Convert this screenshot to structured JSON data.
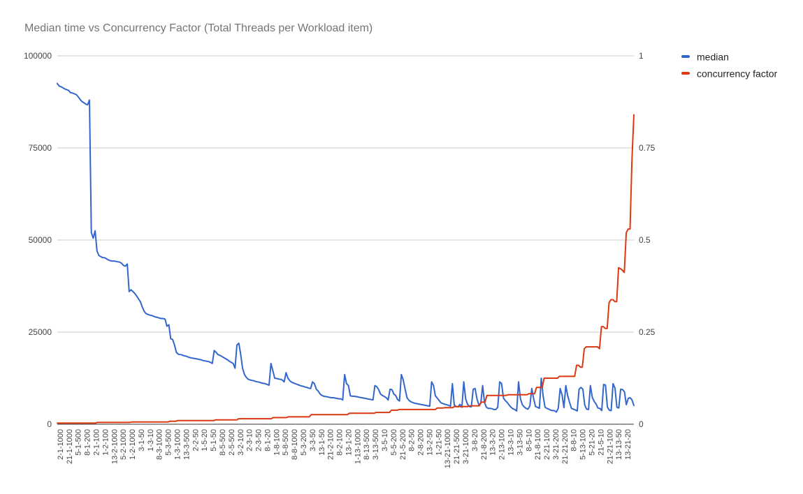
{
  "chart_data": {
    "type": "line",
    "title": "Median time vs Concurrency Factor (Total Threads per Workload item)",
    "xlabel": "",
    "ylabel": "",
    "ylim": [
      0,
      100000
    ],
    "y_ticks": [
      "0",
      "25000",
      "50000",
      "75000",
      "100000"
    ],
    "y2lim": [
      0,
      1
    ],
    "y2_ticks": [
      "0",
      "0.25",
      "0.5",
      "0.75",
      "1"
    ],
    "grid": true,
    "legend_position": "right",
    "x_tick_labels": [
      "2-1-1000",
      "21-1-1000",
      "5-1-500",
      "8-1-200",
      "2-1-100",
      "1-2-100",
      "13-2-1000",
      "5-2-1000",
      "1-2-1000",
      "3-1-50",
      "1-3-10",
      "8-3-1000",
      "5-3-500",
      "1-3-1000",
      "13-3-500",
      "2-2-50",
      "1-5-20",
      "5-1-50",
      "8-5-500",
      "2-5-500",
      "3-2-100",
      "2-3-10",
      "2-3-50",
      "8-1-20",
      "1-8-100",
      "5-8-500",
      "8-8-1000",
      "5-3-200",
      "3-3-50",
      "13-1-50",
      "21-2-100",
      "8-2-100",
      "13-1-20",
      "1-13-1000",
      "8-13-500",
      "3-13-500",
      "3-5-10",
      "5-5-200",
      "21-5-200",
      "8-2-50",
      "2-8-200",
      "13-2-50",
      "1-21-50",
      "13-21-1000",
      "21-21-500",
      "3-21-1000",
      "3-8-20",
      "21-8-200",
      "13-3-20",
      "2-13-100",
      "13-3-10",
      "3-13-50",
      "8-5-10",
      "21-8-100",
      "2-21-100",
      "3-21-200",
      "21-21-200",
      "8-8-10",
      "5-13-100",
      "5-21-20",
      "21-5-10",
      "21-21-100",
      "13-13-50",
      "13-21-20"
    ],
    "series": [
      {
        "name": "median",
        "color": "#3366cc",
        "axis": "left",
        "values": [
          92500,
          91800,
          91600,
          91300,
          91000,
          90800,
          90600,
          90000,
          89900,
          89700,
          89500,
          88900,
          88200,
          87600,
          87300,
          86900,
          86700,
          88000,
          52000,
          50500,
          52500,
          47000,
          45800,
          45500,
          45200,
          45200,
          44900,
          44600,
          44400,
          44300,
          44300,
          44200,
          44100,
          44000,
          43700,
          43100,
          42900,
          43500,
          36000,
          36500,
          36000,
          35500,
          34800,
          34000,
          33200,
          31800,
          30600,
          30000,
          29800,
          29600,
          29500,
          29300,
          29100,
          29000,
          28800,
          28700,
          28700,
          28500,
          26600,
          27000,
          23200,
          23000,
          21500,
          19500,
          19000,
          18900,
          18800,
          18600,
          18500,
          18300,
          18100,
          18000,
          17900,
          17800,
          17700,
          17600,
          17500,
          17300,
          17200,
          17100,
          17000,
          16800,
          16500,
          20000,
          19500,
          18900,
          18700,
          18400,
          18100,
          17800,
          17500,
          17100,
          16800,
          16500,
          15200,
          21500,
          22000,
          19000,
          15200,
          13500,
          12700,
          12200,
          12000,
          11900,
          11800,
          11600,
          11500,
          11400,
          11200,
          11100,
          11000,
          10800,
          10600,
          16500,
          14500,
          12500,
          12400,
          12300,
          12200,
          12000,
          11500,
          14000,
          12500,
          11800,
          11400,
          11200,
          11000,
          10800,
          10600,
          10400,
          10300,
          10100,
          10000,
          9800,
          9700,
          11500,
          11000,
          9500,
          9000,
          8200,
          7800,
          7600,
          7500,
          7400,
          7300,
          7200,
          7200,
          7100,
          7000,
          6900,
          6900,
          6600,
          13500,
          11000,
          10500,
          7700,
          7600,
          7600,
          7500,
          7400,
          7300,
          7200,
          7100,
          7000,
          6900,
          6800,
          6700,
          6600,
          10500,
          10200,
          9400,
          8200,
          7800,
          7500,
          7200,
          6600,
          9500,
          9400,
          8200,
          7800,
          6700,
          6300,
          13500,
          12000,
          9500,
          7200,
          6500,
          6100,
          5900,
          5700,
          5600,
          5500,
          5400,
          5300,
          5200,
          5100,
          5000,
          4900,
          11500,
          10500,
          7700,
          7100,
          6400,
          5800,
          5600,
          5400,
          5300,
          5100,
          4900,
          11000,
          5200,
          4800,
          4700,
          5400,
          4600,
          11500,
          6900,
          5400,
          4800,
          4700,
          9500,
          9700,
          6900,
          5200,
          5600,
          10500,
          5900,
          4600,
          4300,
          4300,
          4200,
          4000,
          4000,
          4600,
          11500,
          11000,
          7100,
          6400,
          5900,
          5200,
          4600,
          4200,
          4000,
          3600,
          11500,
          6900,
          5300,
          4700,
          4300,
          4100,
          5000,
          9700,
          6900,
          4800,
          4600,
          4300,
          12500,
          7600,
          4600,
          4300,
          4100,
          3800,
          3700,
          3700,
          3300,
          4300,
          9700,
          8000,
          4500,
          10500,
          7700,
          5900,
          4300,
          4100,
          3900,
          3600,
          9500,
          10000,
          9500,
          5200,
          4100,
          4000,
          10500,
          7300,
          6200,
          5500,
          4400,
          4300,
          3700,
          10800,
          10600,
          4700,
          3800,
          3700,
          11000,
          9800,
          4600,
          4400,
          9500,
          9400,
          8800,
          5300,
          7000,
          7200,
          6600,
          5100
        ]
      },
      {
        "name": "concurrency factor",
        "color": "#dc3912",
        "axis": "right",
        "values": [
          0.003,
          0.003,
          0.003,
          0.003,
          0.003,
          0.003,
          0.003,
          0.003,
          0.003,
          0.003,
          0.003,
          0.003,
          0.003,
          0.003,
          0.003,
          0.003,
          0.003,
          0.003,
          0.003,
          0.003,
          0.003,
          0.005,
          0.005,
          0.005,
          0.005,
          0.005,
          0.005,
          0.005,
          0.005,
          0.005,
          0.005,
          0.005,
          0.005,
          0.005,
          0.005,
          0.005,
          0.005,
          0.005,
          0.005,
          0.006,
          0.006,
          0.006,
          0.006,
          0.006,
          0.006,
          0.006,
          0.006,
          0.006,
          0.006,
          0.006,
          0.006,
          0.006,
          0.006,
          0.006,
          0.006,
          0.006,
          0.006,
          0.006,
          0.006,
          0.008,
          0.008,
          0.008,
          0.008,
          0.01,
          0.01,
          0.01,
          0.01,
          0.01,
          0.01,
          0.01,
          0.01,
          0.01,
          0.01,
          0.01,
          0.01,
          0.01,
          0.01,
          0.01,
          0.01,
          0.01,
          0.01,
          0.01,
          0.01,
          0.012,
          0.012,
          0.012,
          0.012,
          0.012,
          0.012,
          0.012,
          0.012,
          0.012,
          0.012,
          0.012,
          0.012,
          0.015,
          0.015,
          0.015,
          0.015,
          0.015,
          0.015,
          0.015,
          0.015,
          0.015,
          0.015,
          0.015,
          0.015,
          0.015,
          0.015,
          0.015,
          0.015,
          0.015,
          0.015,
          0.018,
          0.018,
          0.018,
          0.018,
          0.018,
          0.018,
          0.018,
          0.018,
          0.02,
          0.02,
          0.02,
          0.02,
          0.02,
          0.02,
          0.02,
          0.02,
          0.02,
          0.02,
          0.02,
          0.02,
          0.026,
          0.026,
          0.026,
          0.026,
          0.026,
          0.026,
          0.026,
          0.026,
          0.026,
          0.026,
          0.026,
          0.026,
          0.026,
          0.026,
          0.026,
          0.026,
          0.026,
          0.026,
          0.026,
          0.026,
          0.03,
          0.03,
          0.03,
          0.03,
          0.03,
          0.03,
          0.03,
          0.03,
          0.03,
          0.03,
          0.03,
          0.03,
          0.03,
          0.03,
          0.032,
          0.032,
          0.032,
          0.032,
          0.032,
          0.032,
          0.032,
          0.032,
          0.038,
          0.038,
          0.038,
          0.038,
          0.04,
          0.04,
          0.04,
          0.04,
          0.04,
          0.04,
          0.04,
          0.04,
          0.04,
          0.04,
          0.04,
          0.04,
          0.04,
          0.04,
          0.04,
          0.04,
          0.04,
          0.04,
          0.04,
          0.04,
          0.044,
          0.044,
          0.044,
          0.044,
          0.045,
          0.045,
          0.045,
          0.045,
          0.045,
          0.048,
          0.048,
          0.048,
          0.048,
          0.048,
          0.048,
          0.048,
          0.048,
          0.05,
          0.05,
          0.05,
          0.05,
          0.05,
          0.05,
          0.06,
          0.06,
          0.06,
          0.078,
          0.078,
          0.078,
          0.078,
          0.078,
          0.078,
          0.078,
          0.078,
          0.078,
          0.078,
          0.078,
          0.08,
          0.08,
          0.08,
          0.08,
          0.08,
          0.08,
          0.08,
          0.08,
          0.08,
          0.08,
          0.08,
          0.083,
          0.083,
          0.083,
          0.083,
          0.1,
          0.1,
          0.1,
          0.1,
          0.125,
          0.125,
          0.125,
          0.125,
          0.125,
          0.125,
          0.125,
          0.125,
          0.13,
          0.13,
          0.13,
          0.13,
          0.13,
          0.13,
          0.13,
          0.13,
          0.13,
          0.16,
          0.16,
          0.155,
          0.155,
          0.205,
          0.21,
          0.21,
          0.21,
          0.21,
          0.21,
          0.21,
          0.21,
          0.205,
          0.265,
          0.265,
          0.26,
          0.26,
          0.33,
          0.338,
          0.338,
          0.333,
          0.333,
          0.425,
          0.422,
          0.418,
          0.412,
          0.52,
          0.53,
          0.53,
          0.72,
          0.84
        ]
      }
    ]
  }
}
